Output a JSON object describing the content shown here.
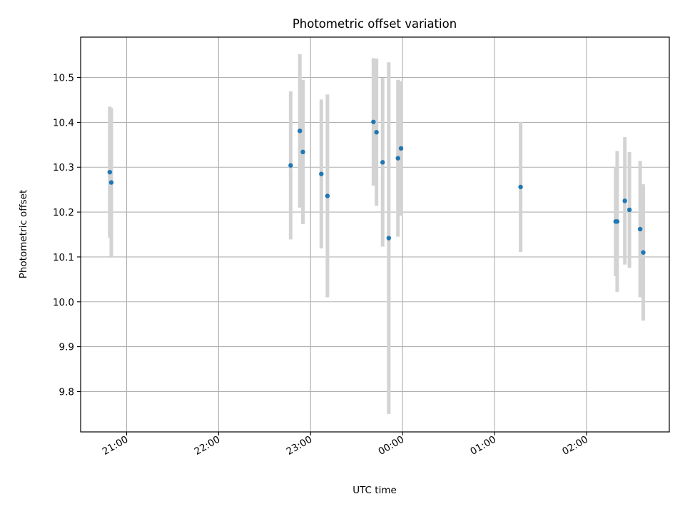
{
  "chart_data": {
    "type": "scatter",
    "title": "Photometric offset variation",
    "xlabel": "UTC time",
    "ylabel": "Photometric offset",
    "x_unit": "UTC time (hours, day boundary at 24:00)",
    "xlim": [
      "20:30",
      "02:54"
    ],
    "ylim": [
      9.71,
      10.59
    ],
    "grid": true,
    "x_ticks": [
      {
        "value": "21:00",
        "label": "21:00"
      },
      {
        "value": "22:00",
        "label": "22:00"
      },
      {
        "value": "23:00",
        "label": "23:00"
      },
      {
        "value": "00:00",
        "label": "00:00"
      },
      {
        "value": "01:00",
        "label": "01:00"
      },
      {
        "value": "02:00",
        "label": "02:00"
      }
    ],
    "y_ticks": [
      9.8,
      9.9,
      10.0,
      10.1,
      10.2,
      10.3,
      10.4,
      10.5
    ],
    "y_tick_labels": [
      "9.8",
      "9.9",
      "10.0",
      "10.1",
      "10.2",
      "10.3",
      "10.4",
      "10.5"
    ],
    "colors": {
      "point": "#1f77b4",
      "errorbar": "#d3d3d3",
      "grid": "#b0b0b0"
    },
    "series": [
      {
        "points": [
          {
            "time": "20:49",
            "y": 10.289,
            "err": 0.146
          },
          {
            "time": "20:50",
            "y": 10.266,
            "err": 0.166
          },
          {
            "time": "22:47",
            "y": 10.304,
            "err": 0.165
          },
          {
            "time": "22:53",
            "y": 10.381,
            "err": 0.171
          },
          {
            "time": "22:55",
            "y": 10.334,
            "err": 0.161
          },
          {
            "time": "23:07",
            "y": 10.285,
            "err": 0.166
          },
          {
            "time": "23:11",
            "y": 10.236,
            "err": 0.226
          },
          {
            "time": "23:41",
            "y": 10.401,
            "err": 0.142
          },
          {
            "time": "23:43",
            "y": 10.378,
            "err": 0.164
          },
          {
            "time": "23:47",
            "y": 10.311,
            "err": 0.188
          },
          {
            "time": "23:51",
            "y": 10.142,
            "err": 0.392
          },
          {
            "time": "23:57",
            "y": 10.32,
            "err": 0.175
          },
          {
            "time": "23:59",
            "y": 10.342,
            "err": 0.15
          },
          {
            "time": "01:17",
            "y": 10.256,
            "err": 0.145
          },
          {
            "time": "02:19",
            "y": 10.179,
            "err": 0.122
          },
          {
            "time": "02:20",
            "y": 10.179,
            "err": 0.157
          },
          {
            "time": "02:25",
            "y": 10.225,
            "err": 0.142
          },
          {
            "time": "02:28",
            "y": 10.205,
            "err": 0.129
          },
          {
            "time": "02:35",
            "y": 10.162,
            "err": 0.152
          },
          {
            "time": "02:37",
            "y": 10.11,
            "err": 0.152
          }
        ]
      }
    ]
  }
}
